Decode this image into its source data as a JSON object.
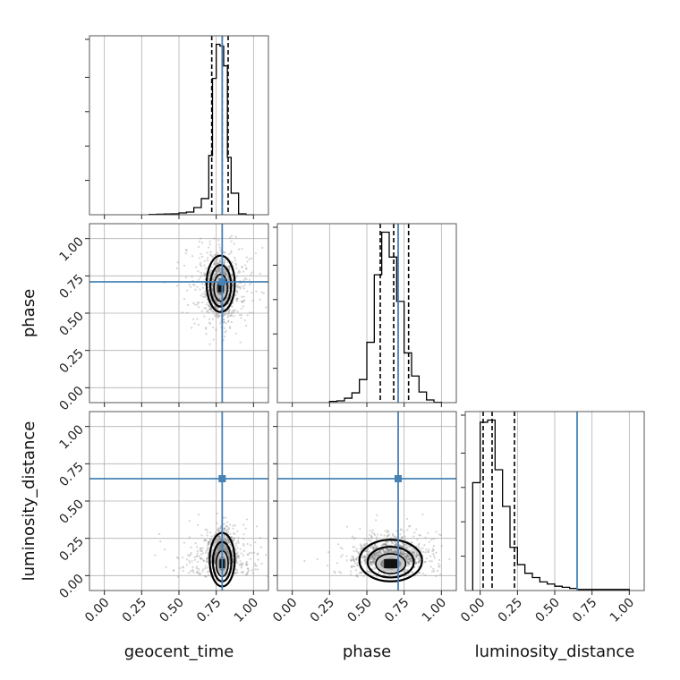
{
  "chart_data": {
    "type": "corner",
    "parameters": [
      {
        "name": "geocent_time",
        "label": "geocent_time",
        "injection": 0.79,
        "quantiles": [
          0.72,
          0.79,
          0.83
        ]
      },
      {
        "name": "phase",
        "label": "phase",
        "injection": 0.71,
        "quantiles": [
          0.59,
          0.68,
          0.78
        ]
      },
      {
        "name": "luminosity_distance",
        "label": "luminosity_distance",
        "injection": 0.65,
        "quantiles": [
          0.02,
          0.08,
          0.23
        ]
      }
    ],
    "range": [
      -0.1,
      1.1
    ],
    "ticks": [
      0.0,
      0.25,
      0.5,
      0.75,
      1.0
    ],
    "tick_labels": [
      "0.00",
      "0.25",
      "0.50",
      "0.75",
      "1.00"
    ],
    "grid": true,
    "injection_color": "#4682b4",
    "line_color": "#000000",
    "histograms": [
      {
        "param": "geocent_time",
        "bin_edges": [
          0.3,
          0.35,
          0.4,
          0.45,
          0.5,
          0.55,
          0.6,
          0.65,
          0.7,
          0.725,
          0.75,
          0.775,
          0.8,
          0.825,
          0.85,
          0.9,
          0.95,
          1.0
        ],
        "counts": [
          0.2,
          0.3,
          0.4,
          0.5,
          1.0,
          1.5,
          4.0,
          9.0,
          33.0,
          76.0,
          95.0,
          94.0,
          83.0,
          32.0,
          12.0,
          0.5,
          0
        ]
      },
      {
        "param": "phase",
        "bin_edges": [
          0.25,
          0.3,
          0.35,
          0.4,
          0.45,
          0.5,
          0.55,
          0.6,
          0.65,
          0.7,
          0.75,
          0.8,
          0.85,
          0.9,
          0.95,
          1.0
        ],
        "counts": [
          0.7,
          1.0,
          2.5,
          5.5,
          13.0,
          34.0,
          72.0,
          96.0,
          82.0,
          57.0,
          28.0,
          15.0,
          6.0,
          1.5,
          0.2
        ]
      },
      {
        "param": "luminosity_distance",
        "bin_edges": [
          -0.05,
          0.0,
          0.05,
          0.1,
          0.15,
          0.2,
          0.25,
          0.3,
          0.35,
          0.4,
          0.45,
          0.5,
          0.55,
          0.6,
          0.65,
          1.0
        ],
        "counts": [
          50.0,
          78.0,
          79.0,
          56.0,
          39.0,
          20.0,
          12.0,
          8.0,
          6.0,
          4.0,
          3.0,
          2.0,
          1.5,
          1.0,
          0.5
        ]
      }
    ],
    "density_panels": [
      {
        "x": "geocent_time",
        "y": "phase",
        "center": [
          0.78,
          0.67
        ],
        "spread": [
          0.045,
          0.09
        ],
        "outlier_spread": [
          0.12,
          0.15
        ]
      },
      {
        "x": "geocent_time",
        "y": "luminosity_distance",
        "center": [
          0.79,
          0.08
        ],
        "spread": [
          0.04,
          0.09
        ],
        "outlier_spread": [
          0.14,
          0.12
        ]
      },
      {
        "x": "phase",
        "y": "luminosity_distance",
        "center": [
          0.66,
          0.08
        ],
        "spread": [
          0.1,
          0.07
        ],
        "outlier_spread": [
          0.16,
          0.12
        ]
      }
    ]
  }
}
